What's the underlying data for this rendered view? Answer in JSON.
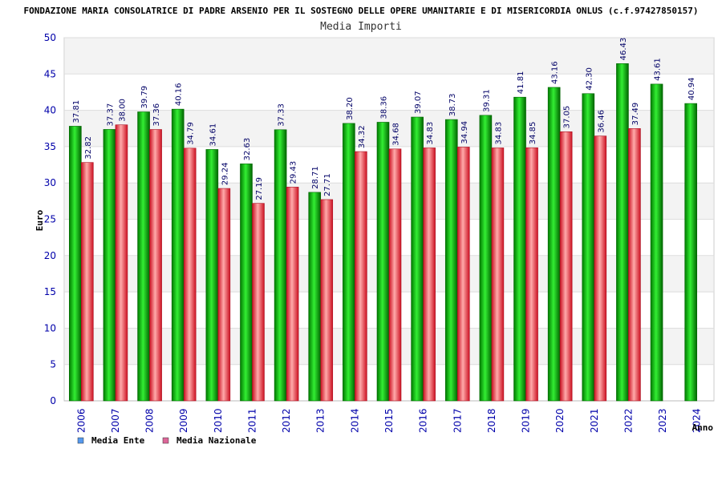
{
  "title": "FONDAZIONE MARIA CONSOLATRICE DI PADRE ARSENIO PER IL SOSTEGNO DELLE OPERE UMANITARIE E DI MISERICORDIA ONLUS (c.f.97427850157)",
  "chart_data": {
    "type": "bar",
    "title": "Media Importi",
    "ylabel": "Euro",
    "xlabel": "Anno",
    "ylim": [
      0,
      50
    ],
    "yticks": [
      0,
      5,
      10,
      15,
      20,
      25,
      30,
      35,
      40,
      45,
      50
    ],
    "categories": [
      "2006",
      "2007",
      "2008",
      "2009",
      "2010",
      "2011",
      "2012",
      "2013",
      "2014",
      "2015",
      "2016",
      "2017",
      "2018",
      "2019",
      "2020",
      "2021",
      "2022",
      "2023",
      "2024"
    ],
    "series": [
      {
        "name": "Media Ente",
        "color": "#00aa00",
        "legend_color": "#5599ee",
        "values": [
          37.81,
          37.37,
          39.79,
          40.16,
          34.61,
          32.63,
          37.33,
          28.71,
          38.2,
          38.36,
          39.07,
          38.73,
          39.31,
          41.81,
          43.16,
          42.3,
          46.43,
          43.61,
          40.94
        ],
        "labels": [
          "37.81",
          "37.37",
          "39.79",
          "40.16",
          "34.61",
          "32.63",
          "37.33",
          "28.71",
          "38.20",
          "38.36",
          "39.07",
          "38.73",
          "39.31",
          "41.81",
          "43.16",
          "42.30",
          "46.43",
          "43.61",
          "40.94"
        ]
      },
      {
        "name": "Media Nazionale",
        "color": "#ee3344",
        "legend_color": "#dd6699",
        "values": [
          32.82,
          38.0,
          37.36,
          34.79,
          29.24,
          27.19,
          29.43,
          27.71,
          34.32,
          34.68,
          34.83,
          34.94,
          34.83,
          34.85,
          37.05,
          36.46,
          37.49,
          null,
          null
        ],
        "labels": [
          "32.82",
          "38.00",
          "37.36",
          "34.79",
          "29.24",
          "27.19",
          "29.43",
          "27.71",
          "34.32",
          "34.68",
          "34.83",
          "34.94",
          "34.83",
          "34.85",
          "37.05",
          "36.46",
          "37.49",
          null,
          null
        ]
      }
    ],
    "grid": true,
    "legend": "bottom-left"
  }
}
